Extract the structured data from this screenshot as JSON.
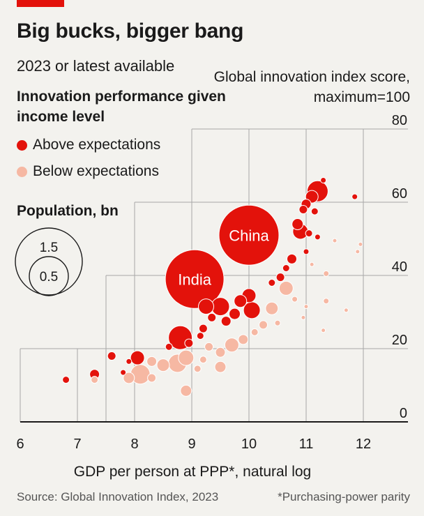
{
  "header": {
    "title": "Big bucks, bigger bang",
    "subtitle": "2023 or latest available"
  },
  "legend": {
    "title": "Innovation performance given income level",
    "items": [
      {
        "label": "Above expectations",
        "color": "#e3120b"
      },
      {
        "label": "Below expectations",
        "color": "#f6b8a3"
      }
    ],
    "size_title": "Population, bn",
    "size_values": [
      "1.5",
      "0.5"
    ]
  },
  "footer": {
    "source": "Source: Global Innovation Index, 2023",
    "note": "*Purchasing-power parity"
  },
  "chart_data": {
    "type": "scatter",
    "title": "Big bucks, bigger bang",
    "subtitle": "2023 or latest available",
    "xlabel": "GDP per person at PPP*, natural log",
    "ylabel": "Global innovation index score, maximum=100",
    "xlim": [
      6,
      12.5
    ],
    "ylim": [
      0,
      80
    ],
    "xticks": [
      "6",
      "7",
      "8",
      "9",
      "10",
      "11",
      "12"
    ],
    "yticks": [
      "0",
      "20",
      "40",
      "60",
      "80"
    ],
    "grid": true,
    "labels": {
      "china": "China",
      "india": "India"
    },
    "series": [
      {
        "name": "Above expectations",
        "color": "#e3120b",
        "points": [
          {
            "x": 10.0,
            "y": 51.0,
            "r": 43,
            "label": "China"
          },
          {
            "x": 9.05,
            "y": 39.0,
            "r": 42,
            "label": "India"
          },
          {
            "x": 11.2,
            "y": 63.0,
            "r": 15
          },
          {
            "x": 11.3,
            "y": 66.0,
            "r": 4
          },
          {
            "x": 11.1,
            "y": 61.5,
            "r": 9
          },
          {
            "x": 11.0,
            "y": 59.5,
            "r": 7
          },
          {
            "x": 10.95,
            "y": 58.0,
            "r": 6
          },
          {
            "x": 11.15,
            "y": 57.5,
            "r": 5
          },
          {
            "x": 10.85,
            "y": 54.0,
            "r": 8
          },
          {
            "x": 10.9,
            "y": 52.0,
            "r": 11
          },
          {
            "x": 11.05,
            "y": 51.5,
            "r": 5
          },
          {
            "x": 11.2,
            "y": 50.5,
            "r": 4
          },
          {
            "x": 11.0,
            "y": 46.5,
            "r": 4
          },
          {
            "x": 10.75,
            "y": 44.5,
            "r": 7
          },
          {
            "x": 10.65,
            "y": 42.0,
            "r": 5
          },
          {
            "x": 10.55,
            "y": 39.5,
            "r": 6
          },
          {
            "x": 10.4,
            "y": 38.0,
            "r": 5
          },
          {
            "x": 10.0,
            "y": 34.5,
            "r": 10
          },
          {
            "x": 10.05,
            "y": 30.5,
            "r": 12
          },
          {
            "x": 9.85,
            "y": 33.0,
            "r": 9
          },
          {
            "x": 9.75,
            "y": 29.5,
            "r": 8
          },
          {
            "x": 9.5,
            "y": 31.5,
            "r": 13
          },
          {
            "x": 9.25,
            "y": 31.5,
            "r": 11
          },
          {
            "x": 9.35,
            "y": 28.5,
            "r": 6
          },
          {
            "x": 9.6,
            "y": 27.5,
            "r": 7
          },
          {
            "x": 9.2,
            "y": 25.5,
            "r": 6
          },
          {
            "x": 9.15,
            "y": 23.5,
            "r": 5
          },
          {
            "x": 8.8,
            "y": 23.0,
            "r": 17
          },
          {
            "x": 8.95,
            "y": 21.5,
            "r": 6
          },
          {
            "x": 8.6,
            "y": 20.5,
            "r": 5
          },
          {
            "x": 8.05,
            "y": 17.5,
            "r": 10
          },
          {
            "x": 7.9,
            "y": 16.5,
            "r": 4
          },
          {
            "x": 7.6,
            "y": 18.0,
            "r": 6
          },
          {
            "x": 7.3,
            "y": 13.0,
            "r": 7
          },
          {
            "x": 6.8,
            "y": 11.5,
            "r": 5
          },
          {
            "x": 7.8,
            "y": 13.5,
            "r": 4
          },
          {
            "x": 11.85,
            "y": 61.5,
            "r": 4
          }
        ]
      },
      {
        "name": "Below expectations",
        "color": "#f6b8a3",
        "points": [
          {
            "x": 10.65,
            "y": 36.5,
            "r": 10
          },
          {
            "x": 10.4,
            "y": 31.0,
            "r": 9
          },
          {
            "x": 10.25,
            "y": 26.5,
            "r": 6
          },
          {
            "x": 10.1,
            "y": 24.5,
            "r": 5
          },
          {
            "x": 9.9,
            "y": 22.5,
            "r": 7
          },
          {
            "x": 9.7,
            "y": 21.0,
            "r": 10
          },
          {
            "x": 9.5,
            "y": 19.0,
            "r": 7
          },
          {
            "x": 9.3,
            "y": 20.5,
            "r": 6
          },
          {
            "x": 9.2,
            "y": 17.0,
            "r": 5
          },
          {
            "x": 9.5,
            "y": 15.0,
            "r": 8
          },
          {
            "x": 9.1,
            "y": 14.5,
            "r": 5
          },
          {
            "x": 8.9,
            "y": 17.5,
            "r": 11
          },
          {
            "x": 8.75,
            "y": 16.0,
            "r": 13
          },
          {
            "x": 8.5,
            "y": 15.5,
            "r": 9
          },
          {
            "x": 8.3,
            "y": 16.5,
            "r": 7
          },
          {
            "x": 8.1,
            "y": 13.0,
            "r": 14
          },
          {
            "x": 7.9,
            "y": 12.0,
            "r": 8
          },
          {
            "x": 8.3,
            "y": 12.0,
            "r": 6
          },
          {
            "x": 8.9,
            "y": 8.5,
            "r": 8
          },
          {
            "x": 7.3,
            "y": 11.5,
            "r": 5
          },
          {
            "x": 10.8,
            "y": 33.5,
            "r": 4
          },
          {
            "x": 11.0,
            "y": 31.5,
            "r": 3
          },
          {
            "x": 11.35,
            "y": 33.0,
            "r": 4
          },
          {
            "x": 11.3,
            "y": 25.0,
            "r": 3
          },
          {
            "x": 11.7,
            "y": 30.5,
            "r": 3
          },
          {
            "x": 11.35,
            "y": 40.5,
            "r": 4
          },
          {
            "x": 11.5,
            "y": 49.5,
            "r": 3
          },
          {
            "x": 11.9,
            "y": 46.5,
            "r": 3
          },
          {
            "x": 11.95,
            "y": 48.5,
            "r": 3
          },
          {
            "x": 11.1,
            "y": 43.0,
            "r": 3
          },
          {
            "x": 10.5,
            "y": 27.0,
            "r": 4
          },
          {
            "x": 10.95,
            "y": 28.5,
            "r": 3
          }
        ]
      }
    ]
  }
}
